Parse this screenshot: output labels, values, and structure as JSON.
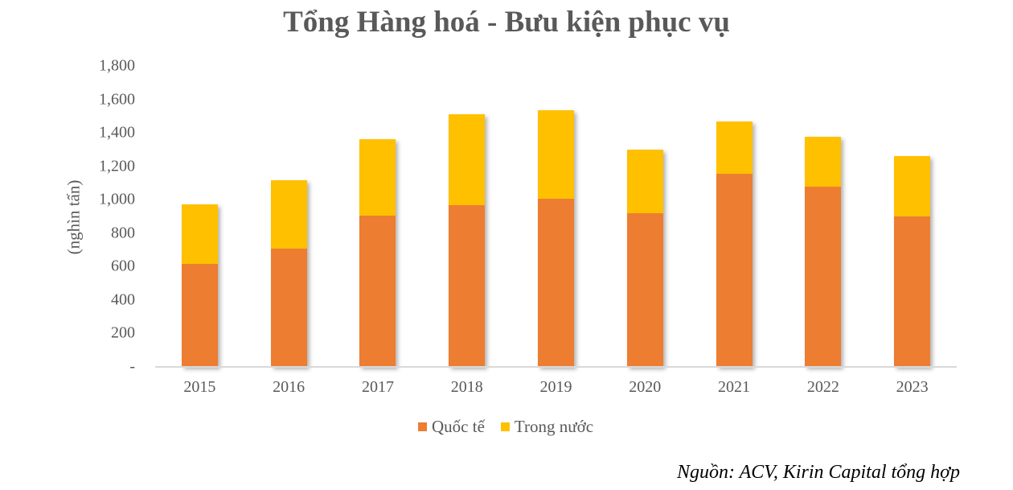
{
  "title": "Tổng Hàng hoá - Bưu kiện phục vụ",
  "source": "Nguồn: ACV, Kirin Capital tổng hợp",
  "colors": {
    "quoc_te": "#ed7d31",
    "trong_nuoc": "#ffc000",
    "text": "#595959",
    "axis": "#d9d9d9"
  },
  "y_ticks": [
    "-",
    "200",
    "400",
    "600",
    "800",
    "1,000",
    "1,200",
    "1,400",
    "1,600",
    "1,800"
  ],
  "legend": [
    {
      "label": "Quốc tế",
      "color": "#ed7d31"
    },
    {
      "label": "Trong nước",
      "color": "#ffc000"
    }
  ],
  "chart_data": {
    "type": "bar",
    "stacked": true,
    "title": "Tổng Hàng hoá - Bưu kiện phục vụ",
    "xlabel": "",
    "ylabel": "(nghìn tấn)",
    "ylim": [
      0,
      1800
    ],
    "y_tick_step": 200,
    "grid": false,
    "legend_position": "bottom",
    "categories": [
      "2015",
      "2016",
      "2017",
      "2018",
      "2019",
      "2020",
      "2021",
      "2022",
      "2023"
    ],
    "series": [
      {
        "name": "Quốc tế",
        "color": "#ed7d31",
        "values": [
          616,
          707,
          904,
          967,
          1005,
          919,
          1154,
          1077,
          899
        ]
      },
      {
        "name": "Trong nước",
        "color": "#ffc000",
        "values": [
          356,
          409,
          457,
          543,
          529,
          380,
          313,
          299,
          361
        ]
      }
    ],
    "totals": [
      972,
      1116,
      1361,
      1510,
      1534,
      1299,
      1467,
      1376,
      1260
    ],
    "annotations": [
      "Nguồn: ACV, Kirin Capital tổng hợp"
    ]
  }
}
